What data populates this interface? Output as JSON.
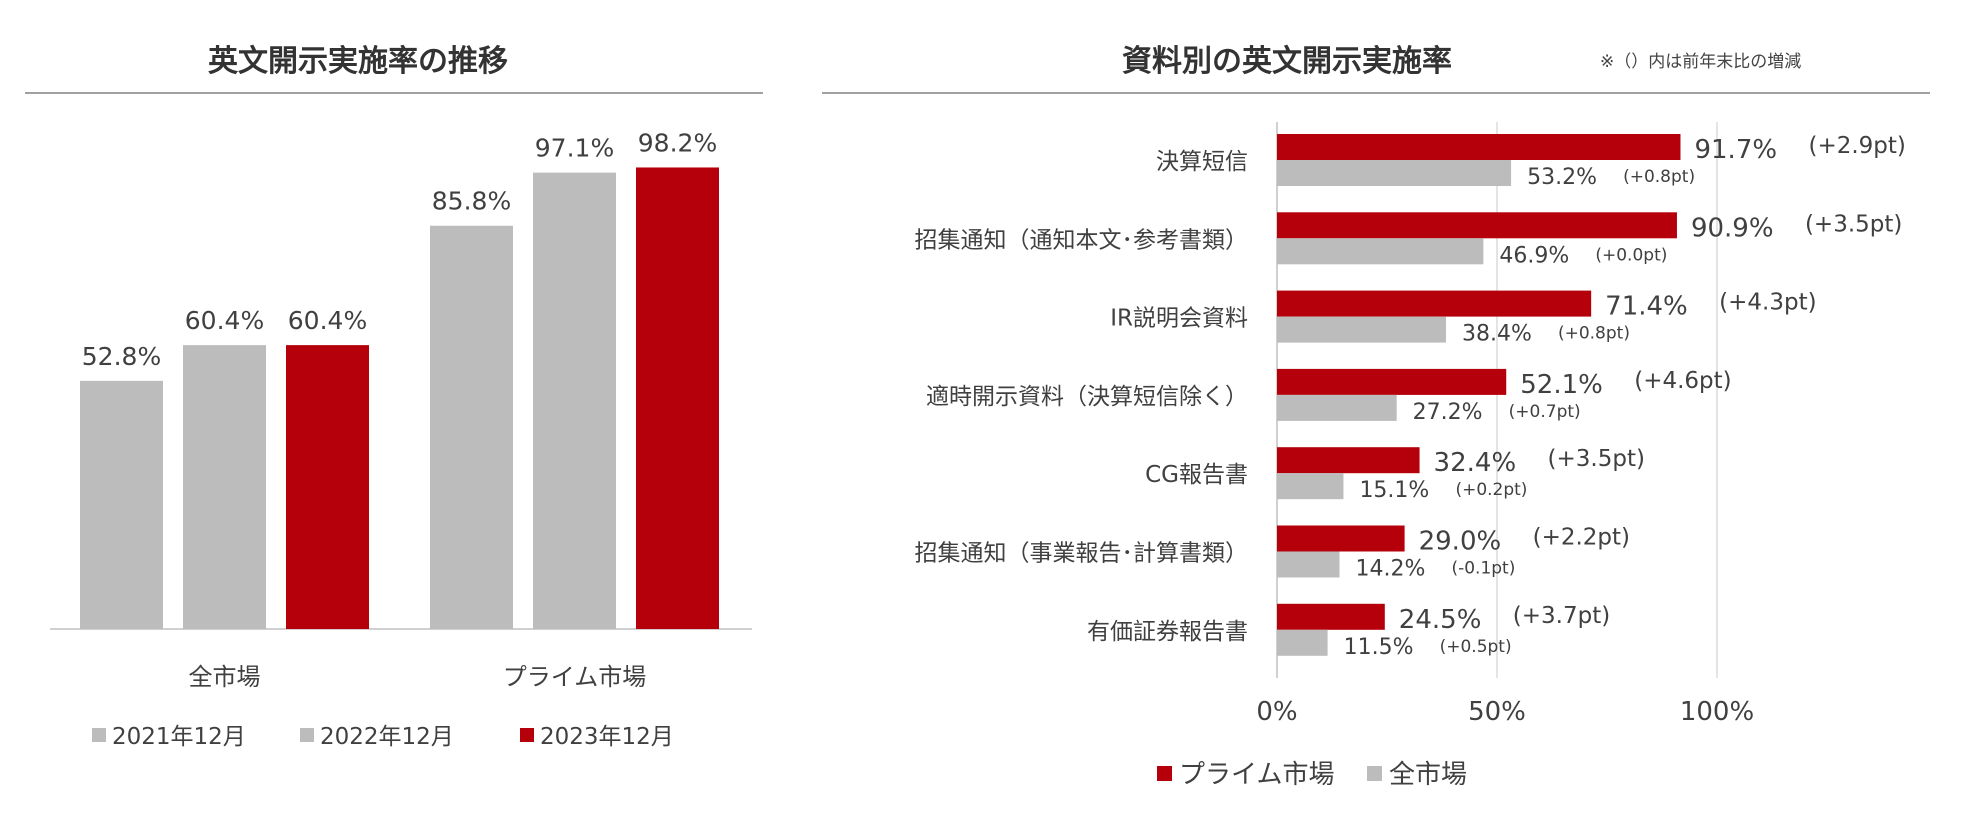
{
  "colors": {
    "prime": "#b5000b",
    "gray": "#bcbcbc",
    "axis": "#d0d0d0",
    "text": "#404040"
  },
  "left_chart": {
    "title": "英文開示実施率の推移"
  },
  "right_chart": {
    "title": "資料別の英文開示実施率",
    "note": "※（）内は前年末比の増減"
  },
  "chart_data": [
    {
      "type": "bar",
      "title": "英文開示実施率の推移",
      "categories": [
        "全市場",
        "プライム市場"
      ],
      "series": [
        {
          "name": "2021年12月",
          "values": [
            52.8,
            85.8
          ],
          "labels": [
            "52.8%",
            "85.8%"
          ],
          "color": "#bcbcbc"
        },
        {
          "name": "2022年12月",
          "values": [
            60.4,
            97.1
          ],
          "labels": [
            "60.4%",
            "97.1%"
          ],
          "color": "#bcbcbc"
        },
        {
          "name": "2023年12月",
          "values": [
            60.4,
            98.2
          ],
          "labels": [
            "60.4%",
            "98.2%"
          ],
          "color": "#b5000b"
        }
      ],
      "ylim": [
        0,
        100
      ],
      "legend": "bottom"
    },
    {
      "type": "bar",
      "orientation": "horizontal",
      "title": "資料別の英文開示実施率",
      "categories": [
        "決算短信",
        "招集通知（通知本文･参考書類）",
        "IR説明会資料",
        "適時開示資料（決算短信除く）",
        "CG報告書",
        "招集通知（事業報告･計算書類）",
        "有価証券報告書"
      ],
      "series": [
        {
          "name": "プライム市場",
          "color": "#b5000b",
          "values": [
            91.7,
            90.9,
            71.4,
            52.1,
            32.4,
            29.0,
            24.5
          ],
          "labels": [
            "91.7%",
            "90.9%",
            "71.4%",
            "52.1%",
            "32.4%",
            "29.0%",
            "24.5%"
          ],
          "changes": [
            "(+2.9pt)",
            "(+3.5pt)",
            "(+4.3pt)",
            "(+4.6pt)",
            "(+3.5pt)",
            "(+2.2pt)",
            "(+3.7pt)"
          ]
        },
        {
          "name": "全市場",
          "color": "#bcbcbc",
          "values": [
            53.2,
            46.9,
            38.4,
            27.2,
            15.1,
            14.2,
            11.5
          ],
          "labels": [
            "53.2%",
            "46.9%",
            "38.4%",
            "27.2%",
            "15.1%",
            "14.2%",
            "11.5%"
          ],
          "changes": [
            "(+0.8pt)",
            "(+0.0pt)",
            "(+0.8pt)",
            "(+0.7pt)",
            "(+0.2pt)",
            "(-0.1pt)",
            "(+0.5pt)"
          ]
        }
      ],
      "xlim": [
        0,
        100
      ],
      "xticks": [
        "0%",
        "50%",
        "100%"
      ],
      "grid": true,
      "legend": "bottom"
    }
  ]
}
